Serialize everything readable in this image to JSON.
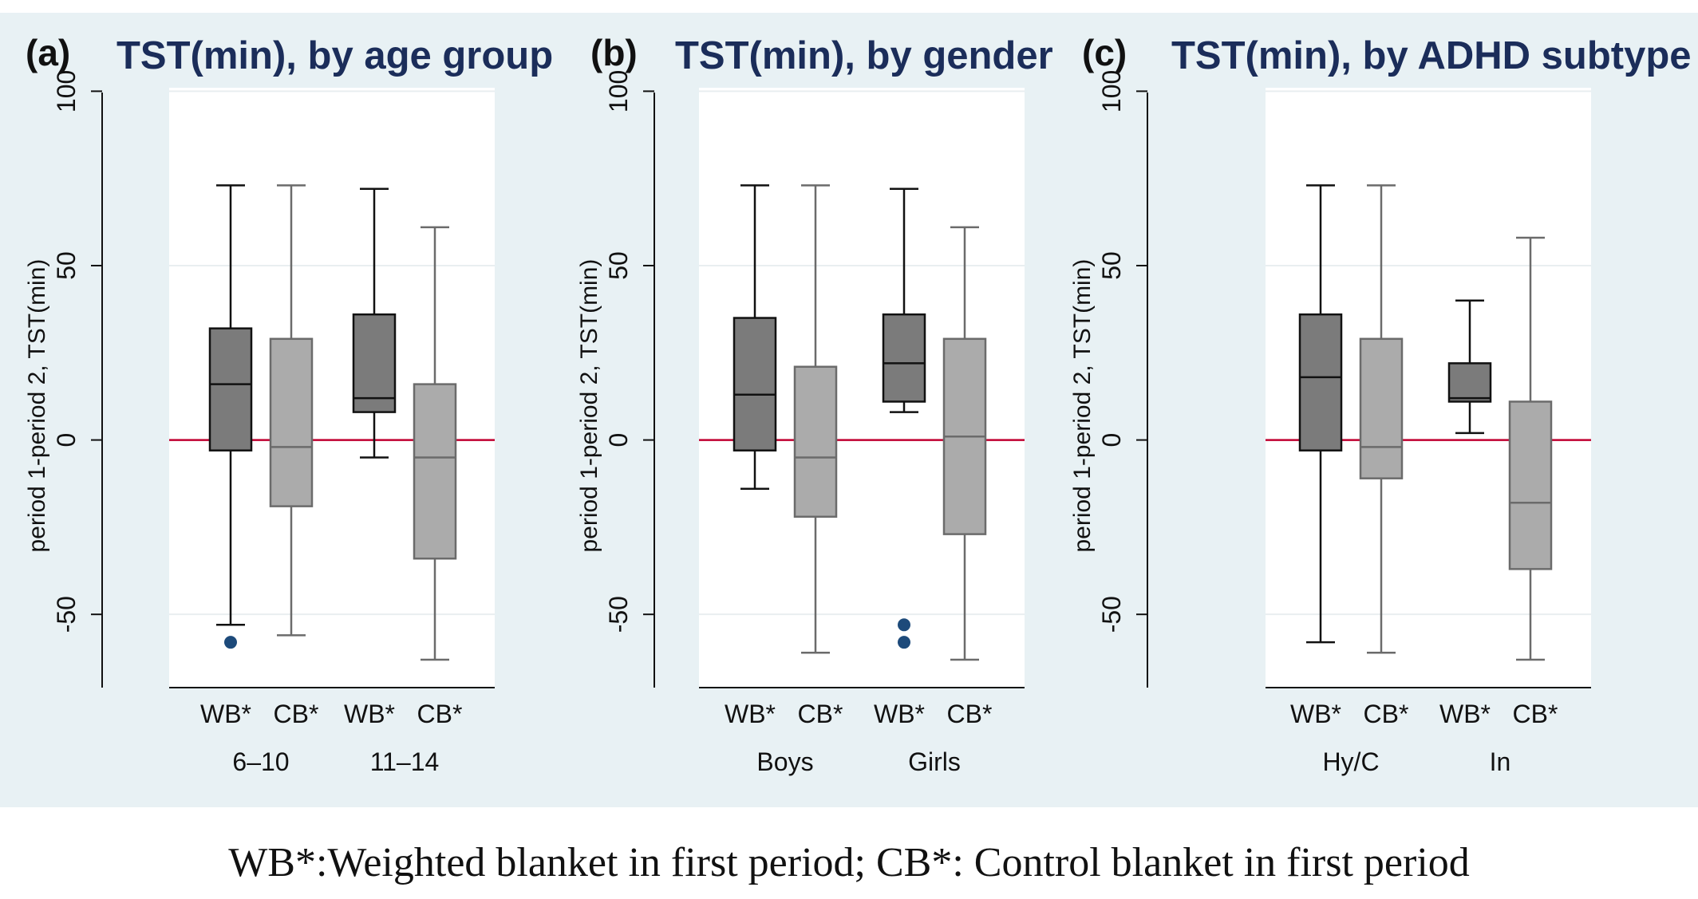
{
  "caption": "WB*:Weighted blanket in first period; CB*: Control blanket in first period",
  "colors": {
    "panel_background": "#e8f1f4",
    "plot_background": "#ffffff",
    "title": "#1b2d5a",
    "wb_fill": "#7b7b7b",
    "cb_fill": "#ababab",
    "wb_line": "#111111",
    "cb_line": "#6b6b6b",
    "reference_line": "#c00030",
    "outlier": "#1d4a7a",
    "grid": "#e9eef0"
  },
  "chart_data": [
    {
      "type": "box",
      "letter": "(a)",
      "title": "TST(min), by age group",
      "ylabel": "period 1-period 2, TST(min)",
      "ylim": [
        -71,
        101
      ],
      "yticks": [
        -50,
        0,
        50,
        100
      ],
      "yticklabels": [
        "-50",
        "0",
        "50",
        "100"
      ],
      "reference_line_y": 0,
      "grid": true,
      "groups": [
        {
          "label": "6–10",
          "boxes": [
            {
              "name": "WB*",
              "whisker_low": -53,
              "q1": -3,
              "median": 16,
              "q3": 32,
              "whisker_high": 73,
              "outliers": [
                -58
              ]
            },
            {
              "name": "CB*",
              "whisker_low": -56,
              "q1": -19,
              "median": -2,
              "q3": 29,
              "whisker_high": 73,
              "outliers": []
            }
          ]
        },
        {
          "label": "11–14",
          "boxes": [
            {
              "name": "WB*",
              "whisker_low": -5,
              "q1": 8,
              "median": 12,
              "q3": 36,
              "whisker_high": 72,
              "outliers": []
            },
            {
              "name": "CB*",
              "whisker_low": -63,
              "q1": -34,
              "median": -5,
              "q3": 16,
              "whisker_high": 61,
              "outliers": []
            }
          ]
        }
      ]
    },
    {
      "type": "box",
      "letter": "(b)",
      "title": "TST(min), by gender",
      "ylabel": "period 1-period 2, TST(min)",
      "ylim": [
        -71,
        101
      ],
      "yticks": [
        -50,
        0,
        50,
        100
      ],
      "yticklabels": [
        "-50",
        "0",
        "50",
        "100"
      ],
      "reference_line_y": 0,
      "grid": true,
      "groups": [
        {
          "label": "Boys",
          "boxes": [
            {
              "name": "WB*",
              "whisker_low": -14,
              "q1": -3,
              "median": 13,
              "q3": 35,
              "whisker_high": 73,
              "outliers": []
            },
            {
              "name": "CB*",
              "whisker_low": -61,
              "q1": -22,
              "median": -5,
              "q3": 21,
              "whisker_high": 73,
              "outliers": []
            }
          ]
        },
        {
          "label": "Girls",
          "boxes": [
            {
              "name": "WB*",
              "whisker_low": 8,
              "q1": 11,
              "median": 22,
              "q3": 36,
              "whisker_high": 72,
              "outliers": [
                -53,
                -58
              ]
            },
            {
              "name": "CB*",
              "whisker_low": -63,
              "q1": -27,
              "median": 1,
              "q3": 29,
              "whisker_high": 61,
              "outliers": []
            }
          ]
        }
      ]
    },
    {
      "type": "box",
      "letter": "(c)",
      "title": "TST(min), by ADHD subtype",
      "ylabel": "period 1-period 2, TST(min)",
      "ylim": [
        -71,
        101
      ],
      "yticks": [
        -50,
        0,
        50,
        100
      ],
      "yticklabels": [
        "-50",
        "0",
        "50",
        "100"
      ],
      "reference_line_y": 0,
      "grid": true,
      "groups": [
        {
          "label": "Hy/C",
          "boxes": [
            {
              "name": "WB*",
              "whisker_low": -58,
              "q1": -3,
              "median": 18,
              "q3": 36,
              "whisker_high": 73,
              "outliers": []
            },
            {
              "name": "CB*",
              "whisker_low": -61,
              "q1": -11,
              "median": -2,
              "q3": 29,
              "whisker_high": 73,
              "outliers": []
            }
          ]
        },
        {
          "label": "In",
          "boxes": [
            {
              "name": "WB*",
              "whisker_low": 2,
              "q1": 11,
              "median": 12,
              "q3": 22,
              "whisker_high": 40,
              "outliers": []
            },
            {
              "name": "CB*",
              "whisker_low": -63,
              "q1": -37,
              "median": -18,
              "q3": 11,
              "whisker_high": 58,
              "outliers": []
            }
          ]
        }
      ]
    }
  ]
}
